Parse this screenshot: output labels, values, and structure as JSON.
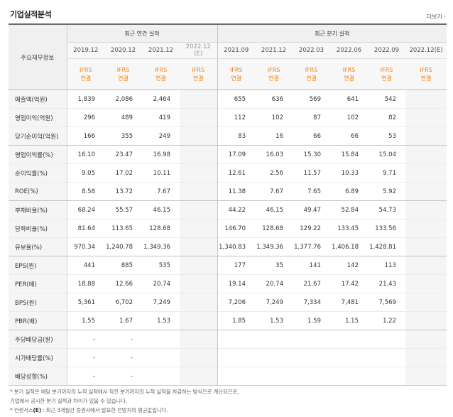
{
  "header": {
    "title": "기업실적분석",
    "more_label": "더보기",
    "more_icon": "chevron-right-icon"
  },
  "table": {
    "row_label_header": "주요재무정보",
    "annual_header": "최근 연간 실적",
    "quarter_header": "최근 분기 실적",
    "annual_periods": [
      "2019.12",
      "2020.12",
      "2021.12"
    ],
    "annual_est": {
      "period": "2022.12",
      "tag": "(E)"
    },
    "quarter_periods": [
      "2021.09",
      "2021.12",
      "2022.03",
      "2022.06",
      "2022.09"
    ],
    "quarter_est": {
      "period": "2022.12",
      "tag": "(E)"
    },
    "basis": [
      "IFRS",
      "연결"
    ],
    "rows": [
      {
        "label": "매출액(억원)",
        "annual": [
          "1,839",
          "2,086",
          "2,464"
        ],
        "quarter": [
          "655",
          "636",
          "569",
          "641",
          "542"
        ]
      },
      {
        "label": "영업이익(억원)",
        "annual": [
          "296",
          "489",
          "419"
        ],
        "quarter": [
          "112",
          "102",
          "87",
          "102",
          "82"
        ]
      },
      {
        "label": "당기순이익(억원)",
        "annual": [
          "166",
          "355",
          "249"
        ],
        "quarter": [
          "83",
          "16",
          "66",
          "66",
          "53"
        ]
      },
      {
        "label": "영업이익률(%)",
        "annual": [
          "16.10",
          "23.47",
          "16.98"
        ],
        "quarter": [
          "17.09",
          "16.03",
          "15.30",
          "15.84",
          "15.04"
        ]
      },
      {
        "label": "순이익률(%)",
        "annual": [
          "9.05",
          "17.02",
          "10.11"
        ],
        "quarter": [
          "12.61",
          "2.56",
          "11.57",
          "10.33",
          "9.71"
        ]
      },
      {
        "label": "ROE(%)",
        "annual": [
          "8.58",
          "13.72",
          "7.67"
        ],
        "quarter": [
          "11.38",
          "7.67",
          "7.65",
          "6.89",
          "5.92"
        ]
      },
      {
        "label": "부채비율(%)",
        "annual": [
          "68.24",
          "55.57",
          "46.15"
        ],
        "quarter": [
          "44.22",
          "46.15",
          "49.47",
          "52.84",
          "54.73"
        ]
      },
      {
        "label": "당좌비율(%)",
        "annual": [
          "81.64",
          "113.65",
          "128.68"
        ],
        "quarter": [
          "146.70",
          "128.68",
          "129.22",
          "133.45",
          "133.56"
        ]
      },
      {
        "label": "유보율(%)",
        "annual": [
          "970.34",
          "1,240.78",
          "1,349.36"
        ],
        "quarter": [
          "1,340.83",
          "1,349.36",
          "1,377.76",
          "1,406.18",
          "1,428.81"
        ]
      },
      {
        "label": "EPS(원)",
        "annual": [
          "441",
          "885",
          "535"
        ],
        "quarter": [
          "177",
          "35",
          "141",
          "142",
          "113"
        ]
      },
      {
        "label": "PER(배)",
        "annual": [
          "18.88",
          "12.66",
          "20.74"
        ],
        "quarter": [
          "19.14",
          "20.74",
          "21.67",
          "17.42",
          "21.43"
        ]
      },
      {
        "label": "BPS(원)",
        "annual": [
          "5,361",
          "6,702",
          "7,249"
        ],
        "quarter": [
          "7,206",
          "7,249",
          "7,334",
          "7,481",
          "7,569"
        ]
      },
      {
        "label": "PBR(배)",
        "annual": [
          "1.55",
          "1.67",
          "1.53"
        ],
        "quarter": [
          "1.85",
          "1.53",
          "1.59",
          "1.15",
          "1.22"
        ]
      },
      {
        "label": "주당배당금(원)",
        "annual": [
          "-",
          "-",
          ""
        ],
        "quarter": [
          "",
          "",
          "",
          "",
          ""
        ]
      },
      {
        "label": "시가배당률(%)",
        "annual": [
          "-",
          "-",
          ""
        ],
        "quarter": [
          "",
          "",
          "",
          "",
          ""
        ]
      },
      {
        "label": "배당성향(%)",
        "annual": [
          "-",
          "-",
          ""
        ],
        "quarter": [
          "",
          "",
          "",
          "",
          ""
        ]
      }
    ],
    "section_starts": [
      0,
      3,
      6,
      9,
      13
    ]
  },
  "notes": [
    {
      "pre": "* 분기 실적은 해당 분기까지의 누적 실적에서 직전 분기까지의 누적 실적을 차감하는 방식으로 계산되므로,",
      "hl": "",
      "post": ""
    },
    {
      "pre": "  기업에서 공시한 분기 실적과 차이가 있을 수 있습니다.",
      "hl": "",
      "post": ""
    },
    {
      "pre": "* 컨센서스",
      "hl": "(E)",
      "post": " : 최근 3개월간 증권사에서 발표한 전망치의 평균값입니다."
    }
  ],
  "colors": {
    "basis": "#ff7a00",
    "estimate_bg": "#f5f5f5",
    "label_bg": "#f5f5f5",
    "header_bg": "#f0f0f0"
  }
}
